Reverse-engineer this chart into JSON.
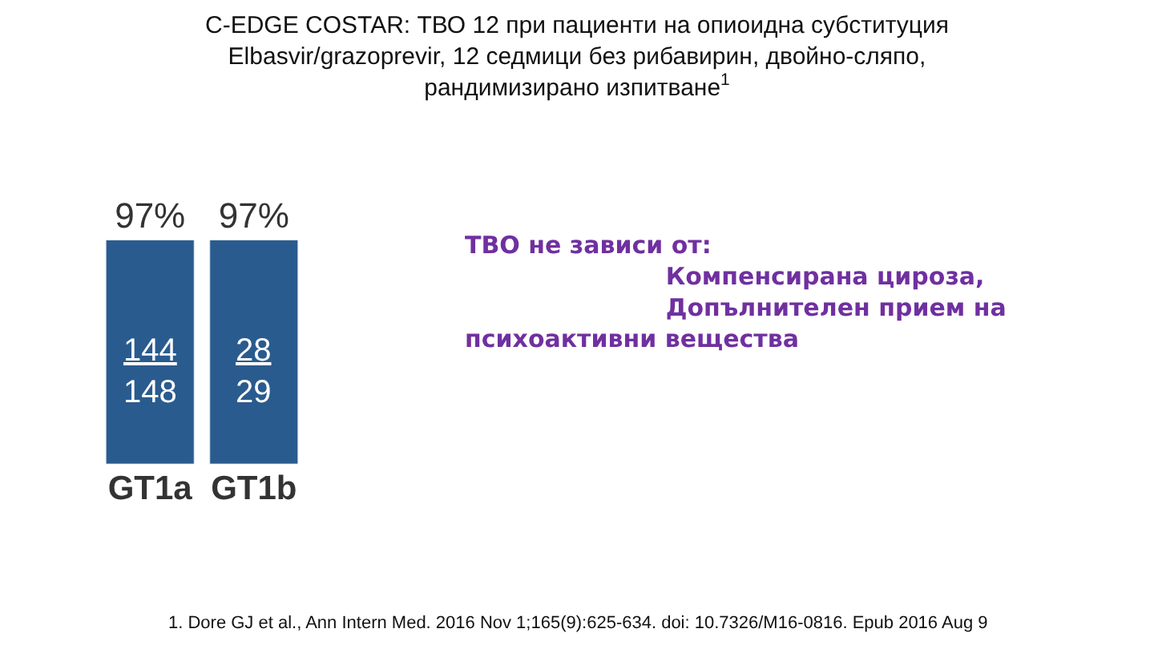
{
  "chart_data": {
    "type": "bar",
    "title": "C-EDGE COSTAR: ТВО 12 при пациенти на опиоидна субституция\nElbasvir/grazoprevir, 12 седмици без рибавирин, двойно-сляпо,\nрандимизирано изпитване$^{1}$",
    "categories": [
      "GT1a",
      "GT1b"
    ],
    "values": [
      97,
      97
    ],
    "value_labels": [
      "97%",
      "97%"
    ],
    "color": "#2a5b8e",
    "annotations": [
      "144\n148",
      "28\n29",
      "ТВО не зависи от:\n            Компенсирана цироза,\n            Допълнителен прием на\nпсихоактивни вещества",
      "1. Dore GJ et al., Ann Intern Med. 2016 Nov 1;165(9):625-634. doi: 10.7326/M16-0816. Epub 2016 Aug 9"
    ]
  }
}
